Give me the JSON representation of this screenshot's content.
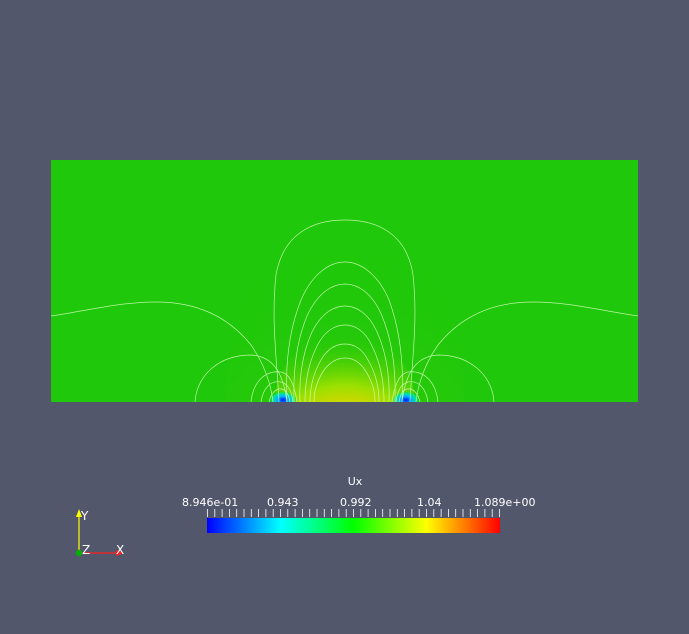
{
  "colorbar": {
    "title": "Ux",
    "ticks": [
      "8.946e-01",
      "0.943",
      "0.992",
      "1.04",
      "1.089e+00"
    ],
    "range": [
      0.8946,
      1.089
    ],
    "colormap": [
      "#0000ff",
      "#00ffff",
      "#00ff00",
      "#ffff00",
      "#ff0000"
    ]
  },
  "field": {
    "background_color": "#1fc80a",
    "contour_color": "#d8ffc0"
  },
  "axes": {
    "y_label": "Y",
    "z_label": "Z",
    "x_label": "X",
    "x_color": "#ff2020",
    "y_color": "#ffff00",
    "z_color": "#00b000"
  },
  "background_color": "#52576b"
}
